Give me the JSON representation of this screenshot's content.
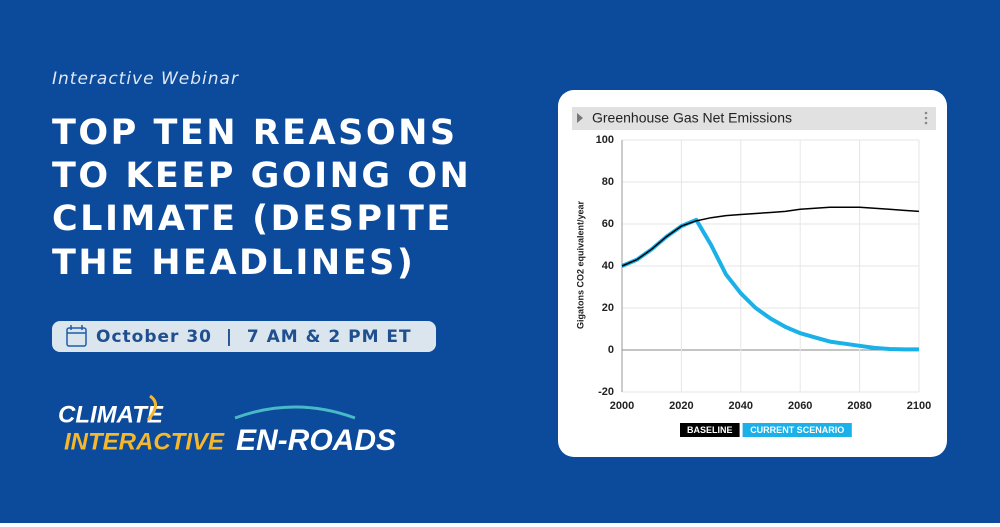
{
  "header": {
    "eyebrow": "Interactive Webinar",
    "title_lines": [
      "TOP TEN REASONS",
      "TO KEEP GOING ON",
      "CLIMATE (DESPITE",
      "THE HEADLINES)"
    ],
    "date": "October 30  |  7 AM & 2 PM ET"
  },
  "logos": {
    "climate_top": "CLIMATE",
    "climate_bottom": "INTERACTIVE",
    "enroads": "EN-ROADS"
  },
  "chart_data": {
    "type": "line",
    "title": "Greenhouse Gas Net Emissions",
    "y_label": "Gigatons CO2 equivalent/year",
    "x": [
      2000,
      2005,
      2010,
      2015,
      2020,
      2025,
      2030,
      2035,
      2040,
      2045,
      2050,
      2055,
      2060,
      2065,
      2070,
      2075,
      2080,
      2085,
      2090,
      2095,
      2100
    ],
    "series": [
      {
        "name": "BASELINE",
        "color": "#000000",
        "values": [
          40,
          43,
          48,
          54,
          59,
          61.5,
          63,
          64,
          64.5,
          65,
          65.5,
          66,
          67,
          67.5,
          68,
          68,
          68,
          67.5,
          67,
          66.5,
          66
        ]
      },
      {
        "name": "CURRENT SCENARIO",
        "color": "#1ab0e8",
        "values": [
          40,
          43,
          48,
          54,
          59,
          62,
          50,
          36,
          27,
          20,
          15,
          11,
          8,
          6,
          4,
          3,
          2,
          1,
          0.5,
          0.3,
          0.3
        ]
      }
    ],
    "xlim": [
      2000,
      2100
    ],
    "xticks": [
      2000,
      2020,
      2040,
      2060,
      2080,
      2100
    ],
    "ylim": [
      -20,
      100
    ],
    "yticks": [
      -20,
      0,
      20,
      40,
      60,
      80,
      100
    ],
    "grid": true
  }
}
